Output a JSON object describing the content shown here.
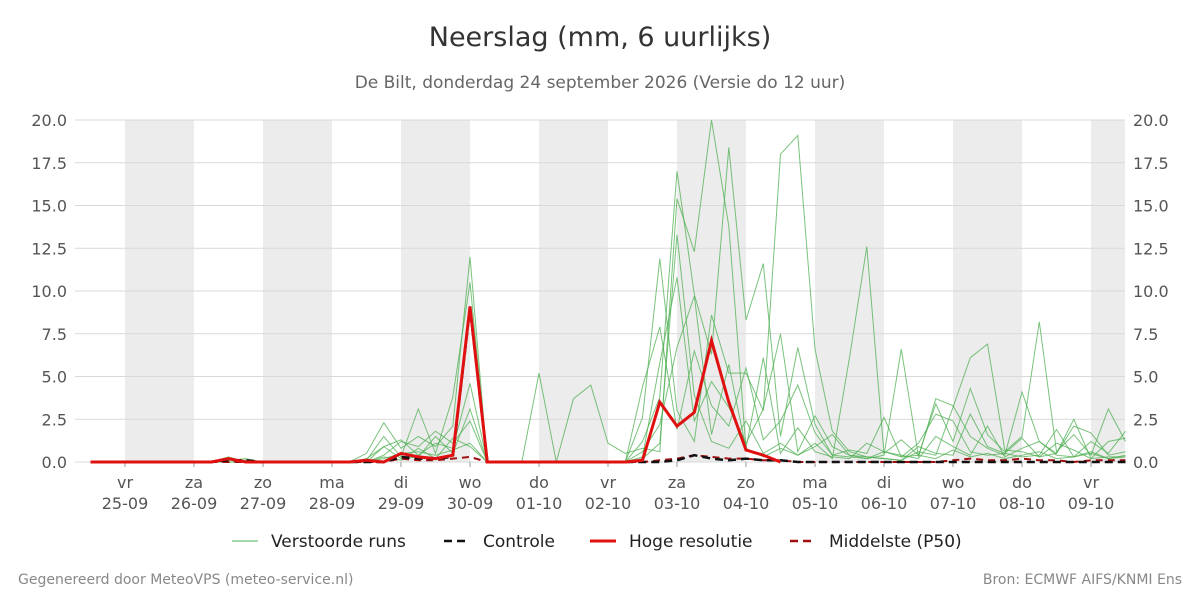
{
  "title": "Neerslag (mm, 6 uurlijks)",
  "subtitle": "De Bilt, donderdag 24 september 2026 (Versie do 12 uur)",
  "footer_left": "Gegenereerd door MeteoVPS (meteo-service.nl)",
  "footer_right": "Bron: ECMWF AIFS/KNMI Ens",
  "chart_data": {
    "type": "line",
    "xlabel": "",
    "ylabel": "",
    "ylim": [
      0,
      20
    ],
    "yticks": [
      "0.0",
      "2.5",
      "5.0",
      "7.5",
      "10.0",
      "12.5",
      "15.0",
      "17.5",
      "20.0"
    ],
    "grid": true,
    "legend_position": "bottom",
    "x_start": "2026-09-24 12:00",
    "step_hours": 6,
    "day_labels": [
      {
        "day": "vr",
        "date": "25-09"
      },
      {
        "day": "za",
        "date": "26-09"
      },
      {
        "day": "zo",
        "date": "27-09"
      },
      {
        "day": "ma",
        "date": "28-09"
      },
      {
        "day": "di",
        "date": "29-09"
      },
      {
        "day": "wo",
        "date": "30-09"
      },
      {
        "day": "do",
        "date": "01-10"
      },
      {
        "day": "vr",
        "date": "02-10"
      },
      {
        "day": "za",
        "date": "03-10"
      },
      {
        "day": "zo",
        "date": "04-10"
      },
      {
        "day": "ma",
        "date": "05-10"
      },
      {
        "day": "di",
        "date": "06-10"
      },
      {
        "day": "wo",
        "date": "07-10"
      },
      {
        "day": "do",
        "date": "08-10"
      },
      {
        "day": "vr",
        "date": "09-10"
      }
    ],
    "legend": [
      {
        "label": "Verstoorde runs",
        "color": "#4caf50",
        "style": "thin"
      },
      {
        "label": "Controle",
        "color": "#111111",
        "style": "dashed"
      },
      {
        "label": "Hoge resolutie",
        "color": "#e01010",
        "style": "solid"
      },
      {
        "label": "Middelste (P50)",
        "color": "#a01010",
        "style": "dashed"
      }
    ],
    "series": [
      {
        "name": "Hoge resolutie",
        "values": [
          0,
          0,
          0,
          0,
          0,
          0,
          0,
          0,
          0.2,
          0,
          0,
          0,
          0,
          0,
          0,
          0,
          0.1,
          0,
          0.5,
          0.3,
          0.2,
          0.4,
          9.1,
          0,
          0,
          0,
          0,
          0,
          0,
          0,
          0,
          0,
          0.1,
          3.5,
          2.1,
          2.9,
          7.1,
          3.5,
          0.7,
          0.4,
          0
        ]
      },
      {
        "name": "Controle",
        "values": [
          0,
          0,
          0,
          0,
          0,
          0,
          0,
          0,
          0.1,
          0.1,
          0,
          0,
          0,
          0,
          0,
          0,
          0,
          0,
          0.3,
          0.2,
          0.2,
          0.3,
          9.0,
          0,
          0,
          0,
          0,
          0,
          0,
          0,
          0,
          0,
          0,
          0,
          0.1,
          0.4,
          0.2,
          0.1,
          0.2,
          0.1,
          0.1,
          0,
          0,
          0,
          0,
          0,
          0,
          0,
          0,
          0,
          0,
          0,
          0,
          0,
          0,
          0,
          0,
          0,
          0,
          0,
          0,
          0,
          0,
          0,
          0,
          0.1,
          0,
          0,
          0,
          0.1,
          0,
          0,
          0,
          0,
          0,
          0,
          0,
          0,
          0,
          0,
          0,
          0,
          0,
          0,
          0,
          0,
          0,
          0,
          0,
          0,
          0,
          0,
          0,
          0,
          0.1,
          0,
          0,
          0.1,
          0.1,
          0,
          0.1
        ]
      },
      {
        "name": "Middelste (P50)",
        "values": [
          0,
          0,
          0,
          0,
          0,
          0,
          0,
          0,
          0,
          0,
          0,
          0,
          0,
          0,
          0,
          0,
          0,
          0,
          0.2,
          0.1,
          0.1,
          0.2,
          0.3,
          0,
          0,
          0,
          0,
          0,
          0,
          0,
          0,
          0,
          0,
          0.1,
          0.2,
          0.4,
          0.3,
          0.2,
          0.2,
          0.1,
          0.1,
          0,
          0,
          0,
          0,
          0,
          0,
          0,
          0,
          0,
          0.1,
          0.2,
          0.1,
          0.1,
          0.2,
          0.1,
          0.1,
          0,
          0.1,
          0.1,
          0.1,
          0.1,
          0.1,
          0.2,
          0.1,
          0.1,
          0.1,
          0.1,
          0.1,
          0.1,
          0.1,
          0.1,
          0.1,
          0.1,
          0.1,
          0.1,
          0.1,
          0.1,
          0.1,
          0.1,
          0.2,
          0.1,
          0.1,
          0.1,
          0.1,
          0.1,
          0.1,
          0.1,
          0.1,
          0.1,
          0.1,
          0.1,
          0.1,
          0.1,
          0.2,
          0.1,
          0.1,
          0.1,
          0.1,
          0.1,
          0.1
        ]
      },
      {
        "name": "Verstoorde runs",
        "values": [
          0,
          0,
          0,
          0,
          0,
          0,
          0,
          0,
          0.3,
          0,
          0,
          0,
          0,
          0,
          0,
          0,
          0.5,
          2.3,
          0.8,
          1.5,
          0.9,
          2.1,
          12,
          0,
          0,
          0,
          0,
          0,
          0,
          0,
          0,
          0,
          2.6,
          11.9,
          3,
          1.2,
          8.6,
          5.2,
          5.2,
          3,
          18,
          19.1,
          6.6,
          1.8,
          0.6,
          0.3,
          0.2,
          0.1,
          0.6,
          0.4,
          3.2,
          6.1,
          6.9,
          0.7,
          0.6,
          0.3,
          0.5,
          2.5,
          0.2,
          0.3,
          0.3,
          6.4,
          8.3,
          1.9,
          0.6,
          9.5,
          0.9,
          8.6,
          10.2,
          0.6,
          0.4,
          5.7,
          0.7,
          8.5,
          3,
          1.2,
          0.8,
          0.3,
          0.1,
          0.1,
          0.2,
          0.1,
          0.1,
          0.1,
          0.1,
          0.1,
          0.1,
          0.1,
          0.1,
          0.1,
          0.1,
          0.1,
          0.1,
          0.1,
          0.2,
          0.3,
          0.8,
          1.5,
          3.2,
          5.5,
          5.7
        ]
      },
      {
        "name": "Verstoorde runs",
        "values": [
          0,
          0,
          0,
          0,
          0,
          0,
          0,
          0,
          0.1,
          0.1,
          0,
          0,
          0,
          0,
          0,
          0,
          0.2,
          0.9,
          1.3,
          0.4,
          1.1,
          0.8,
          4.6,
          0,
          0,
          0,
          0,
          0,
          0,
          0,
          0,
          0,
          1.2,
          3.8,
          17,
          9.8,
          6.3,
          18.4,
          8.3,
          11.6,
          1.5,
          6.7,
          2.2,
          0.4,
          0.3,
          0.2,
          0.4,
          6.6,
          0.3,
          3.7,
          3.3,
          1.5,
          0.8,
          0.4,
          4.1,
          1.2,
          0.5,
          2.1,
          1.7,
          0.4,
          0.6,
          1.9,
          0.5,
          6.8,
          0.9,
          4.4,
          1.8,
          0.4,
          12.9,
          0.8,
          12.7,
          0.5,
          8.4,
          0.6,
          4.7,
          2.3,
          0.4,
          0.8,
          0.2,
          0.1,
          0.1,
          0.1,
          0.1,
          0.1,
          0.1,
          0.1,
          0.1,
          0.1,
          0.1,
          0.1,
          0.1,
          0.1,
          0.2,
          0.4,
          0.9,
          1.4,
          2.7,
          3.6,
          4.2,
          5.1
        ]
      },
      {
        "name": "Verstoorde runs",
        "values": [
          0,
          0,
          0,
          0,
          0,
          0,
          0,
          0,
          0.1,
          0.2,
          0,
          0,
          0,
          0,
          0,
          0,
          0.1,
          1.5,
          0.3,
          3.1,
          0.5,
          3.8,
          10.5,
          0,
          0,
          0,
          5.2,
          0,
          3.7,
          4.5,
          1.1,
          0.5,
          0.8,
          0.6,
          15.4,
          12.3,
          20,
          13.8,
          0.8,
          0.3,
          0.8,
          0.4,
          1.1,
          0.2,
          6.1,
          12.6,
          0.5,
          1.3,
          0.4,
          3.4,
          1.2,
          4.3,
          1.6,
          0.6,
          1.5,
          8.2,
          0.6,
          1.6,
          0.4,
          3.1,
          1.2,
          1.7,
          0.9,
          4.2,
          0.3,
          1.4,
          2.3,
          0.6,
          2.9,
          4.7,
          1.3,
          0.5,
          1.9,
          0.7,
          2.1,
          1.4,
          0.6,
          0.3,
          0.1,
          0.1,
          0.1,
          0.1,
          0.1,
          0.1,
          0.1,
          0.1,
          0.1,
          0.1,
          0.1,
          0.1,
          0.1,
          0.1,
          0.3,
          0.7,
          1.6,
          2.4,
          0.9,
          1.8,
          2.7,
          1.1
        ]
      },
      {
        "name": "Verstoorde runs",
        "values": [
          0,
          0,
          0,
          0,
          0,
          0,
          0,
          0,
          0,
          0,
          0,
          0,
          0,
          0,
          0,
          0,
          0,
          0.4,
          1.2,
          0.9,
          1.8,
          1.1,
          2.4,
          0,
          0,
          0,
          0,
          0,
          0,
          0,
          0,
          0,
          4.4,
          7.9,
          1.9,
          6.5,
          3.3,
          2.1,
          5.5,
          1.3,
          2.4,
          4.5,
          1.7,
          0.4,
          0.7,
          0.5,
          2.6,
          0.3,
          1.1,
          2.8,
          2.4,
          0.6,
          0.4,
          0.5,
          1.4,
          0.3,
          1.1,
          0.7,
          0.2,
          1.2,
          1.4,
          0.3,
          2.5,
          0.9,
          2.2,
          0.6,
          0.5,
          1.4,
          0.8,
          1.7,
          0.4,
          0.9,
          1.3,
          0.5,
          2.2,
          0.4,
          0.3,
          0.1,
          0.1,
          0.1,
          0.1,
          0.1,
          0.1,
          0.1,
          0.1,
          0.1,
          0.1,
          0.1,
          0.1,
          0.1,
          0.1,
          0.1,
          0.1,
          0.2,
          0.3,
          0.5,
          0.4,
          0.8,
          1.1,
          0.6
        ]
      },
      {
        "name": "Verstoorde runs",
        "values": [
          0,
          0,
          0,
          0,
          0,
          0,
          0,
          0,
          0,
          0,
          0,
          0,
          0,
          0,
          0,
          0,
          0,
          0.2,
          0.5,
          0.6,
          0.4,
          0.7,
          1.1,
          0,
          0,
          0,
          0,
          0,
          0,
          0,
          0,
          0,
          0.3,
          5.8,
          10.8,
          2.4,
          4.7,
          3.2,
          1.1,
          3.1,
          7.5,
          0.6,
          2.7,
          0.9,
          0.4,
          0.3,
          0.2,
          0.1,
          0.9,
          0.5,
          0.4,
          2.8,
          0.9,
          0.5,
          0.3,
          0.4,
          1.9,
          0.3,
          0.6,
          0.2,
          0.4,
          1.1,
          0.5,
          0.3,
          0.7,
          0.4,
          2.9,
          0.4,
          1.7,
          0.3,
          0.6,
          1.1,
          0.5,
          1.4,
          0.3,
          0.2,
          0.2,
          0.1,
          0.1,
          0.1,
          0.1,
          0.1,
          0.1,
          0.1,
          0.1,
          0.1,
          0.1,
          0.1,
          0.1,
          0.1,
          0.1,
          0.1,
          0.1,
          0.1,
          0.2,
          0.3,
          0.4,
          0.3,
          0.5,
          0.4
        ]
      },
      {
        "name": "Verstoorde runs",
        "values": [
          0,
          0,
          0,
          0,
          0,
          0,
          0,
          0,
          0,
          0,
          0,
          0,
          0,
          0,
          0,
          0,
          0,
          0.9,
          0.2,
          0.3,
          1.5,
          0.5,
          3.1,
          0,
          0,
          0,
          0,
          0,
          0,
          0,
          0,
          0,
          0.6,
          2.2,
          6.7,
          9.7,
          1.6,
          5.7,
          0.8,
          6.1,
          0.5,
          2,
          0.6,
          0.3,
          0.2,
          1.1,
          0.6,
          0.4,
          0.2,
          1.5,
          0.9,
          0.4,
          2.1,
          0.3,
          0.8,
          1.2,
          0.4,
          0.3,
          1.2,
          0.5,
          1.8,
          0.8,
          0.4,
          0.6,
          1.3,
          0.2,
          1.8,
          0.7,
          0.4,
          0.3,
          1.9,
          0.6,
          0.3,
          0.8,
          0.4,
          0.6,
          0.2,
          0.1,
          0.1,
          0.1,
          0.1,
          0.1,
          0.1,
          0.1,
          0.1,
          0.1,
          0.1,
          0.1,
          0.1,
          0.1,
          0.1,
          0.1,
          0.2,
          0.2,
          0.4,
          0.7,
          1.3,
          0.9,
          1.8,
          2.1
        ]
      },
      {
        "name": "Verstoorde runs",
        "values": [
          0,
          0,
          0,
          0,
          0,
          0,
          0,
          0,
          0,
          0,
          0,
          0,
          0,
          0,
          0,
          0,
          0,
          0.3,
          0.1,
          0.8,
          0.2,
          1.4,
          0.9,
          0,
          0,
          0,
          0,
          0,
          0,
          0,
          0,
          0,
          0.2,
          1.1,
          13.3,
          3.9,
          1.2,
          0.8,
          2.4,
          0.5,
          1.1,
          0.4,
          0.9,
          1.6,
          0.4,
          0.2,
          0.6,
          0.3,
          0.4,
          0.2,
          0.7,
          0.3,
          0.5,
          0.2,
          0.4,
          0.6,
          0.2,
          0.3,
          0.5,
          0.2,
          0.3,
          0.4,
          0.3,
          0.2,
          0.5,
          0.4,
          0.3,
          0.2,
          0.4,
          0.5,
          0.3,
          0.4,
          0.2,
          0.3,
          0.4,
          0.2,
          0.1,
          0.1,
          0.1,
          0.1,
          0.1,
          0.1,
          0.1,
          0.1,
          0.1,
          0.1,
          0.1,
          0.1,
          0.1,
          0.1,
          0.1,
          0.1,
          0.1,
          0.1,
          0.1,
          0.2,
          0.2,
          0.3,
          0.2,
          0.3,
          0.2
        ]
      }
    ]
  }
}
